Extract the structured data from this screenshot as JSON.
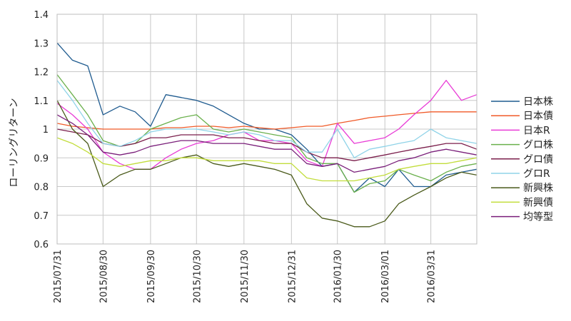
{
  "chart_data": {
    "type": "line",
    "title": "",
    "xlabel": "",
    "ylabel": "ローリングリターン",
    "ylim": [
      0.6,
      1.4
    ],
    "yticks": [
      "0.6",
      "0.7",
      "0.8",
      "0.9",
      "1",
      "1.1",
      "1.2",
      "1.3",
      "1.4"
    ],
    "grid": true,
    "legend_position": "right",
    "x_dates": [
      "2015/07/31",
      "2015/08/30",
      "2015/09/30",
      "2015/10/30",
      "2015/11/30",
      "2015/12/31",
      "2016/01/30",
      "2016/03/01",
      "2016/03/31"
    ],
    "x": [
      "2015/07/31",
      "2015/08/10",
      "2015/08/20",
      "2015/08/30",
      "2015/09/10",
      "2015/09/20",
      "2015/09/30",
      "2015/10/10",
      "2015/10/20",
      "2015/10/30",
      "2015/11/10",
      "2015/11/20",
      "2015/11/30",
      "2015/12/10",
      "2015/12/20",
      "2015/12/31",
      "2016/01/10",
      "2016/01/20",
      "2016/01/30",
      "2016/02/10",
      "2016/02/20",
      "2016/03/01",
      "2016/03/10",
      "2016/03/20",
      "2016/03/31",
      "2016/04/10",
      "2016/04/20",
      "2016/04/30"
    ],
    "series": [
      {
        "name": "日本株",
        "color": "#1f5b8f",
        "values": [
          1.3,
          1.24,
          1.22,
          1.05,
          1.08,
          1.06,
          1.01,
          1.12,
          1.11,
          1.1,
          1.08,
          1.05,
          1.02,
          1.0,
          1.0,
          0.98,
          0.93,
          0.87,
          0.88,
          0.78,
          0.83,
          0.8,
          0.86,
          0.8,
          0.8,
          0.84,
          0.85,
          0.86
        ]
      },
      {
        "name": "日本債",
        "color": "#f05a28",
        "values": [
          1.02,
          1.01,
          1.005,
          1.0,
          1.0,
          1.0,
          1.0,
          1.005,
          1.005,
          1.01,
          1.01,
          1.005,
          1.01,
          1.005,
          1.0,
          1.005,
          1.01,
          1.01,
          1.02,
          1.03,
          1.04,
          1.045,
          1.05,
          1.055,
          1.06,
          1.06,
          1.06,
          1.06
        ]
      },
      {
        "name": "日本R",
        "color": "#e83cd6",
        "values": [
          1.09,
          1.05,
          1.0,
          0.92,
          0.88,
          0.86,
          0.86,
          0.9,
          0.93,
          0.95,
          0.96,
          0.98,
          0.99,
          0.96,
          0.96,
          0.95,
          0.89,
          0.87,
          1.02,
          0.95,
          0.96,
          0.97,
          1.0,
          1.05,
          1.1,
          1.17,
          1.1,
          1.12
        ]
      },
      {
        "name": "グロ株",
        "color": "#6ab04c",
        "values": [
          1.19,
          1.12,
          1.05,
          0.96,
          0.94,
          0.95,
          1.0,
          1.02,
          1.04,
          1.05,
          1.0,
          0.99,
          1.0,
          0.99,
          0.98,
          0.97,
          0.9,
          0.88,
          0.88,
          0.78,
          0.81,
          0.82,
          0.86,
          0.84,
          0.82,
          0.85,
          0.87,
          0.88
        ]
      },
      {
        "name": "グロ債",
        "color": "#7b1f4c",
        "values": [
          1.0,
          0.99,
          0.98,
          0.95,
          0.94,
          0.95,
          0.97,
          0.97,
          0.98,
          0.98,
          0.98,
          0.97,
          0.97,
          0.96,
          0.95,
          0.95,
          0.92,
          0.9,
          0.9,
          0.89,
          0.9,
          0.91,
          0.92,
          0.93,
          0.94,
          0.95,
          0.95,
          0.93
        ]
      },
      {
        "name": "グロR",
        "color": "#8fd3e8",
        "values": [
          1.17,
          1.1,
          1.02,
          0.95,
          0.94,
          0.96,
          0.99,
          1.0,
          1.0,
          1.0,
          0.99,
          0.98,
          0.99,
          0.98,
          0.96,
          0.96,
          0.92,
          0.92,
          1.0,
          0.9,
          0.93,
          0.94,
          0.95,
          0.96,
          1.0,
          0.97,
          0.96,
          0.95
        ]
      },
      {
        "name": "新興株",
        "color": "#4a5a1a",
        "values": [
          1.1,
          1.0,
          0.95,
          0.8,
          0.84,
          0.86,
          0.86,
          0.88,
          0.9,
          0.91,
          0.88,
          0.87,
          0.88,
          0.87,
          0.86,
          0.84,
          0.74,
          0.69,
          0.68,
          0.66,
          0.66,
          0.68,
          0.74,
          0.77,
          0.8,
          0.83,
          0.85,
          0.84
        ]
      },
      {
        "name": "新興債",
        "color": "#c2dd3c",
        "values": [
          0.97,
          0.95,
          0.92,
          0.88,
          0.87,
          0.88,
          0.89,
          0.89,
          0.9,
          0.9,
          0.89,
          0.89,
          0.89,
          0.89,
          0.88,
          0.88,
          0.83,
          0.82,
          0.82,
          0.82,
          0.83,
          0.84,
          0.86,
          0.87,
          0.88,
          0.88,
          0.89,
          0.9
        ]
      },
      {
        "name": "均等型",
        "color": "#7a1f7a",
        "values": [
          1.05,
          1.02,
          0.98,
          0.92,
          0.91,
          0.92,
          0.94,
          0.95,
          0.96,
          0.96,
          0.95,
          0.95,
          0.95,
          0.94,
          0.93,
          0.93,
          0.88,
          0.87,
          0.88,
          0.85,
          0.86,
          0.87,
          0.89,
          0.9,
          0.92,
          0.93,
          0.92,
          0.91
        ]
      }
    ]
  }
}
